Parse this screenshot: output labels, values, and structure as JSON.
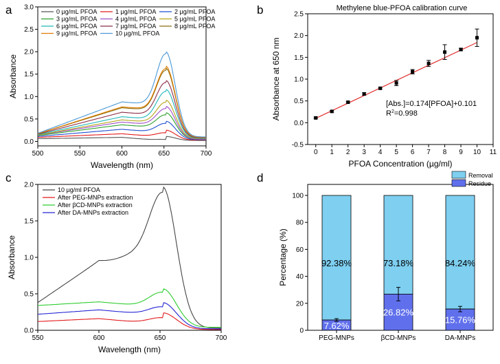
{
  "chart_data": [
    {
      "panel": "a",
      "type": "line",
      "xlabel": "Wavelength (nm)",
      "ylabel": "Absorbance",
      "xlim": [
        500,
        700
      ],
      "ylim": [
        -0.1,
        3.0
      ],
      "xticks": [
        500,
        550,
        600,
        650,
        700
      ],
      "yticks": [
        0.0,
        0.5,
        1.0,
        1.5,
        2.0,
        2.5,
        3.0
      ],
      "legend": "top",
      "series": [
        {
          "name": "0 µg/mL PFOA",
          "color": "#555555",
          "start": 0.06,
          "shoulder": 0.09,
          "valley": 0.08,
          "peak": 0.11,
          "end": 0.02
        },
        {
          "name": "1 µg/mL PFOA",
          "color": "#e31a1c",
          "start": 0.09,
          "shoulder": 0.17,
          "valley": 0.15,
          "peak": 0.25,
          "end": 0.03
        },
        {
          "name": "2 µg/mL PFOA",
          "color": "#1f4fd1",
          "start": 0.11,
          "shoulder": 0.27,
          "valley": 0.24,
          "peak": 0.45,
          "end": 0.04
        },
        {
          "name": "3 µg/mL PFOA",
          "color": "#2ca02c",
          "start": 0.13,
          "shoulder": 0.37,
          "valley": 0.34,
          "peak": 0.64,
          "end": 0.05
        },
        {
          "name": "4 µg/mL PFOA",
          "color": "#9e4fc8",
          "start": 0.14,
          "shoulder": 0.43,
          "valley": 0.4,
          "peak": 0.78,
          "end": 0.05
        },
        {
          "name": "5 µg/mL PFOA",
          "color": "#b5a51a",
          "start": 0.14,
          "shoulder": 0.48,
          "valley": 0.45,
          "peak": 0.92,
          "end": 0.06
        },
        {
          "name": "6 µg/mL PFOA",
          "color": "#1fb7b7",
          "start": 0.15,
          "shoulder": 0.55,
          "valley": 0.52,
          "peak": 1.16,
          "end": 0.07
        },
        {
          "name": "7 µg/mL PFOA",
          "color": "#8c2d46",
          "start": 0.16,
          "shoulder": 0.65,
          "valley": 0.62,
          "peak": 1.36,
          "end": 0.08
        },
        {
          "name": "8 µg/mL PFOA",
          "color": "#8a6d0b",
          "start": 0.17,
          "shoulder": 0.75,
          "valley": 0.72,
          "peak": 1.63,
          "end": 0.09
        },
        {
          "name": "9 µg/mL PFOA",
          "color": "#e07b00",
          "start": 0.17,
          "shoulder": 0.77,
          "valley": 0.75,
          "peak": 1.68,
          "end": 0.09
        },
        {
          "name": "10 µg/mL PFOA",
          "color": "#4a98d6",
          "start": 0.18,
          "shoulder": 0.88,
          "valley": 0.85,
          "peak": 2.0,
          "end": 0.1
        }
      ]
    },
    {
      "panel": "b",
      "type": "scatter",
      "title": "Methylene blue-PFOA calibration curve",
      "xlabel": "PFOA Concentration (µg/ml)",
      "ylabel": "Absorbance at 650 nm",
      "xlim": [
        -0.5,
        11
      ],
      "ylim": [
        -0.5,
        2.5
      ],
      "xticks": [
        0,
        1,
        2,
        3,
        4,
        5,
        6,
        7,
        8,
        9,
        10,
        11
      ],
      "yticks": [
        -0.5,
        0.0,
        0.5,
        1.0,
        1.5,
        2.0,
        2.5
      ],
      "x": [
        0,
        1,
        2,
        3,
        4,
        5,
        6,
        7,
        8,
        9,
        10
      ],
      "y": [
        0.11,
        0.26,
        0.47,
        0.66,
        0.79,
        0.91,
        1.17,
        1.36,
        1.62,
        1.68,
        1.95
      ],
      "yerr": [
        0.02,
        0.02,
        0.02,
        0.03,
        0.02,
        0.06,
        0.05,
        0.07,
        0.17,
        0.03,
        0.2
      ],
      "fit": {
        "slope": 0.174,
        "intercept": 0.101,
        "color": "#e03030"
      },
      "equation": "[Abs.]=0.174[PFOA]+0.101",
      "r2_prefix": "R",
      "r2_sup": "2",
      "r2_value": "=0.998"
    },
    {
      "panel": "c",
      "type": "line",
      "xlabel": "Wavelength (nm)",
      "ylabel": "Absorbance",
      "xlim": [
        550,
        700
      ],
      "ylim": [
        0.0,
        2.0
      ],
      "xticks": [
        550,
        600,
        650,
        700
      ],
      "yticks": [
        0.0,
        0.5,
        1.0,
        1.5,
        2.0
      ],
      "legend": "top-left",
      "series": [
        {
          "name": "10 µg/ml PFOA",
          "color": "#444444",
          "start": 0.38,
          "shoulder": 0.95,
          "valley": 1.1,
          "peak": 1.97,
          "end": 0.03
        },
        {
          "name": "After PEG-MNPs extraction",
          "color": "#e31a1c",
          "start": 0.12,
          "shoulder": 0.16,
          "valley": 0.15,
          "peak": 0.24,
          "end": 0.01
        },
        {
          "name": "After βCD-MNPs extraction",
          "color": "#2ecc2e",
          "start": 0.34,
          "shoulder": 0.39,
          "valley": 0.36,
          "peak": 0.57,
          "end": 0.04
        },
        {
          "name": "After DA-MNPs extraction",
          "color": "#2424d4",
          "start": 0.22,
          "shoulder": 0.28,
          "valley": 0.26,
          "peak": 0.38,
          "end": 0.02
        }
      ]
    },
    {
      "panel": "d",
      "type": "bar",
      "stacked": true,
      "xlabel": "",
      "ylabel": "Percentage (%)",
      "ylim": [
        0,
        100
      ],
      "yticks": [
        0,
        20,
        40,
        60,
        80,
        100
      ],
      "categories": [
        "PEG-MNPs",
        "βCD-MNPs",
        "DA-MNPs"
      ],
      "series": [
        {
          "name": "Residue",
          "color": "#6070ec",
          "values": [
            7.62,
            26.82,
            15.76
          ],
          "labels": [
            "7.62%",
            "26.82%",
            "15.76%"
          ],
          "err": [
            1.0,
            5.0,
            2.0
          ]
        },
        {
          "name": "Removal",
          "color": "#7ecff0",
          "values": [
            92.38,
            73.18,
            84.24
          ],
          "labels": [
            "92.38%",
            "73.18%",
            "84.24%"
          ]
        }
      ],
      "legend": "top-right"
    }
  ]
}
